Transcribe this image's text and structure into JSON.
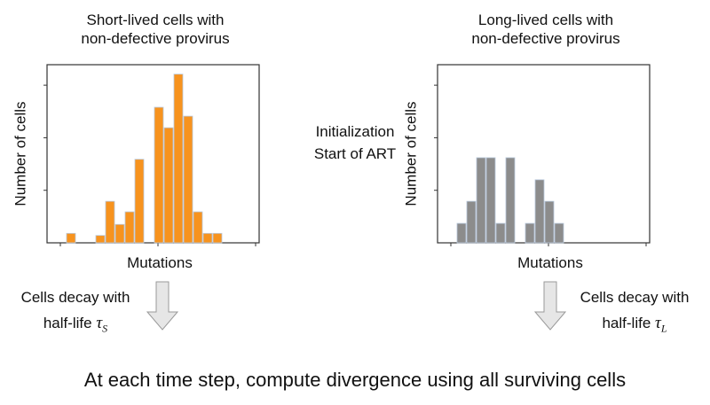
{
  "left_panel": {
    "title_line1": "Short-lived cells with",
    "title_line2": "non-defective provirus",
    "ylabel": "Number of cells",
    "xlabel": "Mutations",
    "bar_color": "#F7931E",
    "decay_line1": "Cells decay with",
    "decay_line2": "half-life",
    "tau_symbol": "τ",
    "tau_sub": "S"
  },
  "right_panel": {
    "title_line1": "Long-lived cells with",
    "title_line2": "non-defective provirus",
    "ylabel": "Number of cells",
    "xlabel": "Mutations",
    "bar_color": "#8C8C8C",
    "decay_line1": "Cells decay with",
    "decay_line2": "half-life",
    "tau_symbol": "τ",
    "tau_sub": "L"
  },
  "center": {
    "line1": "Initialization",
    "line2": "Start of ART"
  },
  "footer": "At each time step, compute divergence using all surviving cells",
  "chart_data": [
    {
      "type": "bar",
      "title": "Short-lived cells with non-defective provirus",
      "xlabel": "Mutations",
      "ylabel": "Number of cells",
      "bins": [
        0,
        1,
        2,
        3,
        4,
        5,
        6,
        7,
        8,
        9,
        10,
        11,
        12,
        13,
        14,
        15
      ],
      "values": [
        0.18,
        0,
        0,
        0.14,
        0.79,
        0.35,
        0.59,
        1.59,
        0,
        2.58,
        2.19,
        3.21,
        2.41,
        0.59,
        0.18,
        0.18
      ],
      "ylim": [
        0,
        3.39
      ]
    },
    {
      "type": "bar",
      "title": "Long-lived cells with non-defective provirus",
      "xlabel": "Mutations",
      "ylabel": "Number of cells",
      "bins": [
        0,
        1,
        2,
        3,
        4,
        5,
        6,
        7,
        8,
        9,
        10
      ],
      "values": [
        0.37,
        0.79,
        1.62,
        1.62,
        0.37,
        1.62,
        0,
        0.37,
        1.2,
        0.79,
        0.37
      ],
      "ylim": [
        0,
        3.39
      ]
    }
  ]
}
